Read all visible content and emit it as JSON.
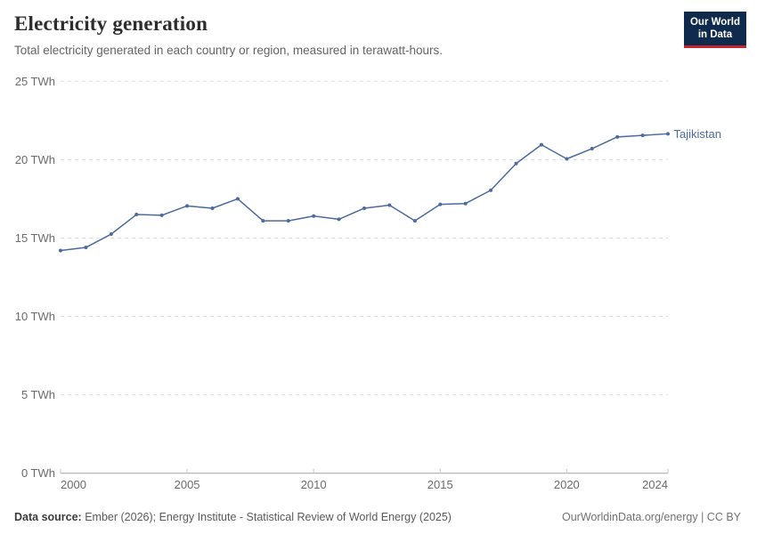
{
  "header": {
    "title": "Electricity generation",
    "subtitle": "Total electricity generated in each country or region, measured in terawatt-hours."
  },
  "logo": {
    "line1": "Our World",
    "line2": "in Data",
    "bg_color": "#102a4d",
    "accent_color": "#be282d"
  },
  "chart_data": {
    "type": "line",
    "title": "Electricity generation",
    "xlabel": "",
    "ylabel": "",
    "x": [
      2000,
      2001,
      2002,
      2003,
      2004,
      2005,
      2006,
      2007,
      2008,
      2009,
      2010,
      2011,
      2012,
      2013,
      2014,
      2015,
      2016,
      2017,
      2018,
      2019,
      2020,
      2021,
      2022,
      2023,
      2024
    ],
    "series": [
      {
        "name": "Tajikistan",
        "color": "#4c6a9c",
        "values": [
          14.2,
          14.4,
          15.25,
          16.5,
          16.45,
          17.05,
          16.9,
          17.5,
          16.1,
          16.1,
          16.4,
          16.2,
          16.9,
          17.1,
          16.1,
          17.15,
          17.2,
          18.05,
          19.75,
          20.95,
          20.05,
          20.7,
          21.45,
          21.55,
          21.65
        ]
      }
    ],
    "ylim": [
      0,
      25
    ],
    "yticks": [
      0,
      5,
      10,
      15,
      20,
      25
    ],
    "ytick_format": "{v} TWh",
    "xticks": [
      2000,
      2005,
      2010,
      2015,
      2020,
      2024
    ],
    "grid": "horizontal-dashed",
    "legend_position": "end-of-line-label",
    "unit": "TWh"
  },
  "footer": {
    "source_label": "Data source:",
    "source_text": " Ember (2026); Energy Institute - Statistical Review of World Energy (2025)",
    "credit": "OurWorldinData.org/energy | CC BY"
  }
}
